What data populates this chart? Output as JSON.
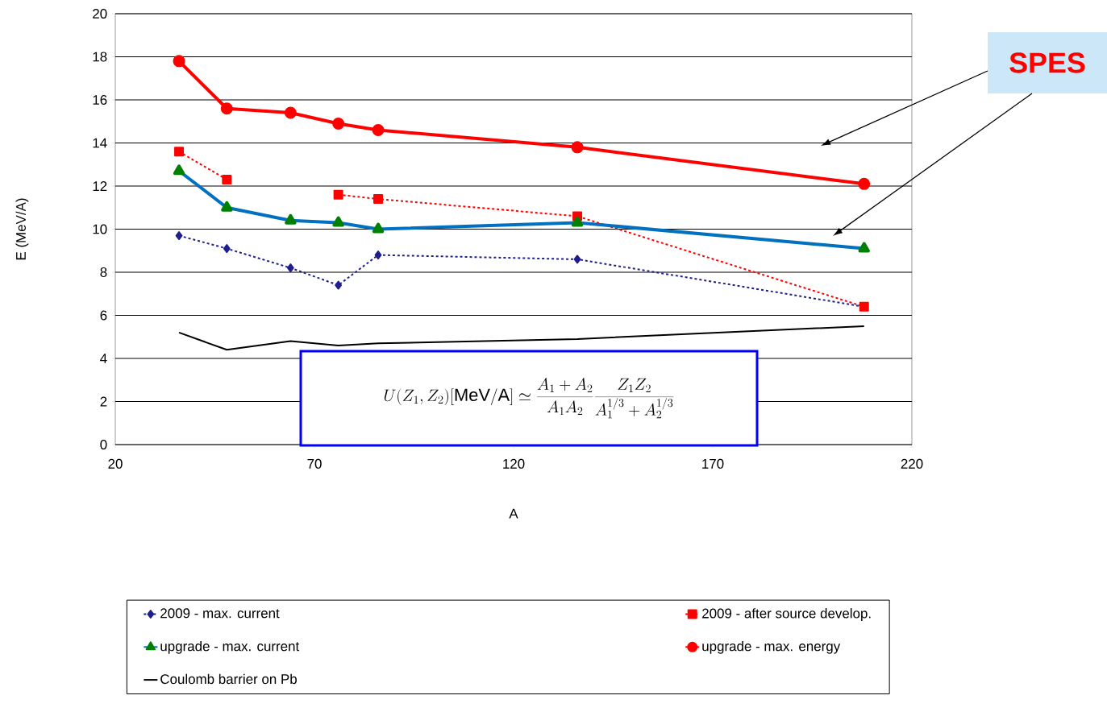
{
  "chart_data": {
    "type": "line",
    "xlabel": "A",
    "ylabel": "E (MeV/A)",
    "x": [
      36,
      48,
      64,
      76,
      86,
      136,
      208
    ],
    "series": [
      {
        "name": "2009 - max. current",
        "color": "#1f1f8c",
        "marker": "diamond",
        "line_style": "dashed",
        "values": [
          9.7,
          9.1,
          8.2,
          7.4,
          8.8,
          8.6,
          6.4
        ]
      },
      {
        "name": "2009 - after source develop.",
        "color": "#ff0000",
        "marker": "square",
        "line_style": "dashed",
        "values": [
          13.6,
          12.3,
          null,
          11.6,
          11.4,
          10.6,
          6.4
        ]
      },
      {
        "name": "upgrade - max. current",
        "color": "#0070c0",
        "colors": [
          "#008000",
          "#008000",
          "#008000",
          "#008000",
          "#008000",
          "#008000",
          "#008000"
        ],
        "marker": "triangle",
        "line_style": "solid",
        "values": [
          12.7,
          11.0,
          10.4,
          10.3,
          10.0,
          10.3,
          9.1
        ]
      },
      {
        "name": "upgrade - max. energy",
        "color": "#ff0000",
        "marker": "circle",
        "line_style": "solid",
        "values": [
          17.8,
          15.6,
          15.4,
          14.9,
          14.6,
          13.8,
          12.1
        ]
      },
      {
        "name": "Coulomb barrier on Pb",
        "color": "#000000",
        "marker": "none",
        "line_style": "solid",
        "values": [
          5.2,
          4.4,
          4.8,
          4.6,
          4.7,
          4.9,
          5.5
        ]
      }
    ],
    "xlim": [
      20,
      220
    ],
    "xticks": [
      20,
      70,
      120,
      170,
      220
    ],
    "ylim": [
      0,
      20
    ],
    "yticks": [
      0,
      2,
      4,
      6,
      8,
      10,
      12,
      14,
      16,
      18,
      20
    ],
    "grid": "y",
    "legend": "bottom",
    "annotations": [
      "U(Z_1,Z_2)[\\mathrm{MeV/A}] \\simeq \\frac{A_1+A_2}{A_1A_2}\\frac{Z_1Z_2}{A_1^{1/3}+A_2^{1/3}}",
      "SPES"
    ]
  }
}
